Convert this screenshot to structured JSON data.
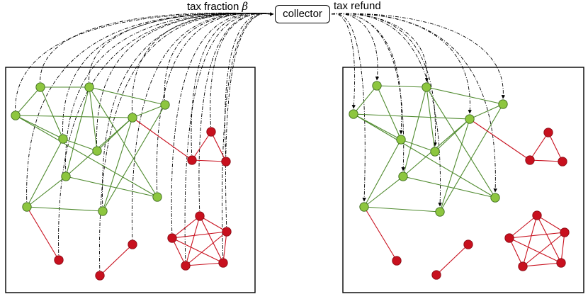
{
  "labels": {
    "tax_fraction": "tax fraction",
    "beta": "β",
    "collector": "collector",
    "tax_refund": "tax refund"
  },
  "colors": {
    "cooperator_node": "#8dc63f",
    "cooperator_edge": "#4f8a2e",
    "defector_node": "#c8101e",
    "defector_edge": "#c8101e",
    "node_outline": "#3d6b1e",
    "flow_line": "#000000"
  },
  "node_types": [
    "cooperator",
    "defector"
  ],
  "panels": [
    "before-collection",
    "after-refund"
  ]
}
